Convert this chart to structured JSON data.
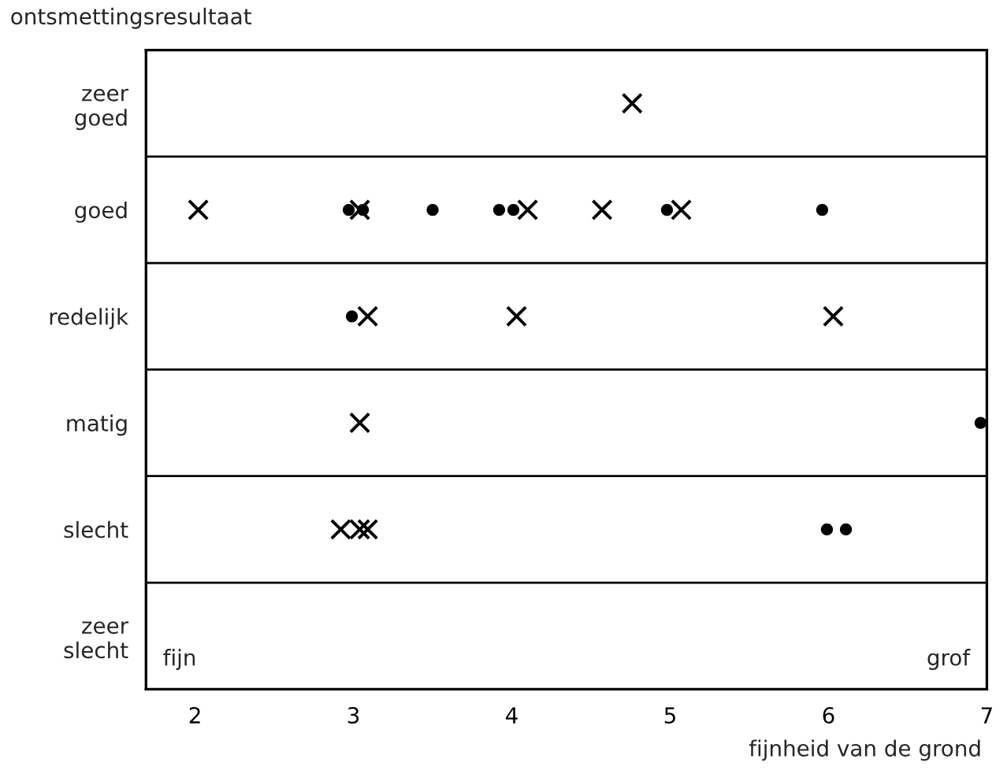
{
  "chart_data": {
    "type": "scatter",
    "orientation": "horizontal",
    "ylabel": "ontsmettingsresultaat",
    "xlabel": "fijnheid van de grond",
    "annotations": [
      "fijn",
      "grof"
    ],
    "xlim": [
      1.69,
      7.0
    ],
    "xticks": [
      2,
      3,
      4,
      5,
      6,
      7
    ],
    "categories": [
      "zeer\ngoed",
      "goed",
      "redelijk",
      "matig",
      "slecht",
      "zeer\nslecht"
    ],
    "grid": "y",
    "legend": false,
    "series": [
      {
        "marker": "cross",
        "color": "#000000",
        "values": [
          4.76,
          2.02,
          3.09,
          3.04,
          2.92,
          null
        ]
      },
      {
        "marker": "cross",
        "color": "#000000",
        "values": [
          null,
          3.04,
          4.03,
          null,
          3.09,
          null
        ]
      },
      {
        "marker": "cross",
        "color": "#000000",
        "values": [
          null,
          4.1,
          6.03,
          null,
          3.04,
          null
        ]
      },
      {
        "marker": "cross",
        "color": "#000000",
        "values": [
          null,
          4.57,
          null,
          null,
          null,
          null
        ]
      },
      {
        "marker": "cross",
        "color": "#000000",
        "values": [
          null,
          5.07,
          null,
          null,
          null,
          null
        ]
      },
      {
        "marker": "circle",
        "color": "#000000",
        "values": [
          null,
          2.97,
          2.99,
          6.96,
          5.99,
          null
        ]
      },
      {
        "marker": "circle",
        "color": "#000000",
        "values": [
          null,
          3.06,
          null,
          null,
          6.11,
          null
        ]
      },
      {
        "marker": "circle",
        "color": "#000000",
        "values": [
          null,
          3.5,
          null,
          null,
          null,
          null
        ]
      },
      {
        "marker": "circle",
        "color": "#000000",
        "values": [
          null,
          3.92,
          null,
          null,
          null,
          null
        ]
      },
      {
        "marker": "circle",
        "color": "#000000",
        "values": [
          null,
          4.01,
          null,
          null,
          null,
          null
        ]
      },
      {
        "marker": "circle",
        "color": "#000000",
        "values": [
          null,
          4.98,
          null,
          null,
          null,
          null
        ]
      },
      {
        "marker": "circle",
        "color": "#000000",
        "values": [
          null,
          5.96,
          null,
          null,
          null,
          null
        ]
      }
    ]
  }
}
